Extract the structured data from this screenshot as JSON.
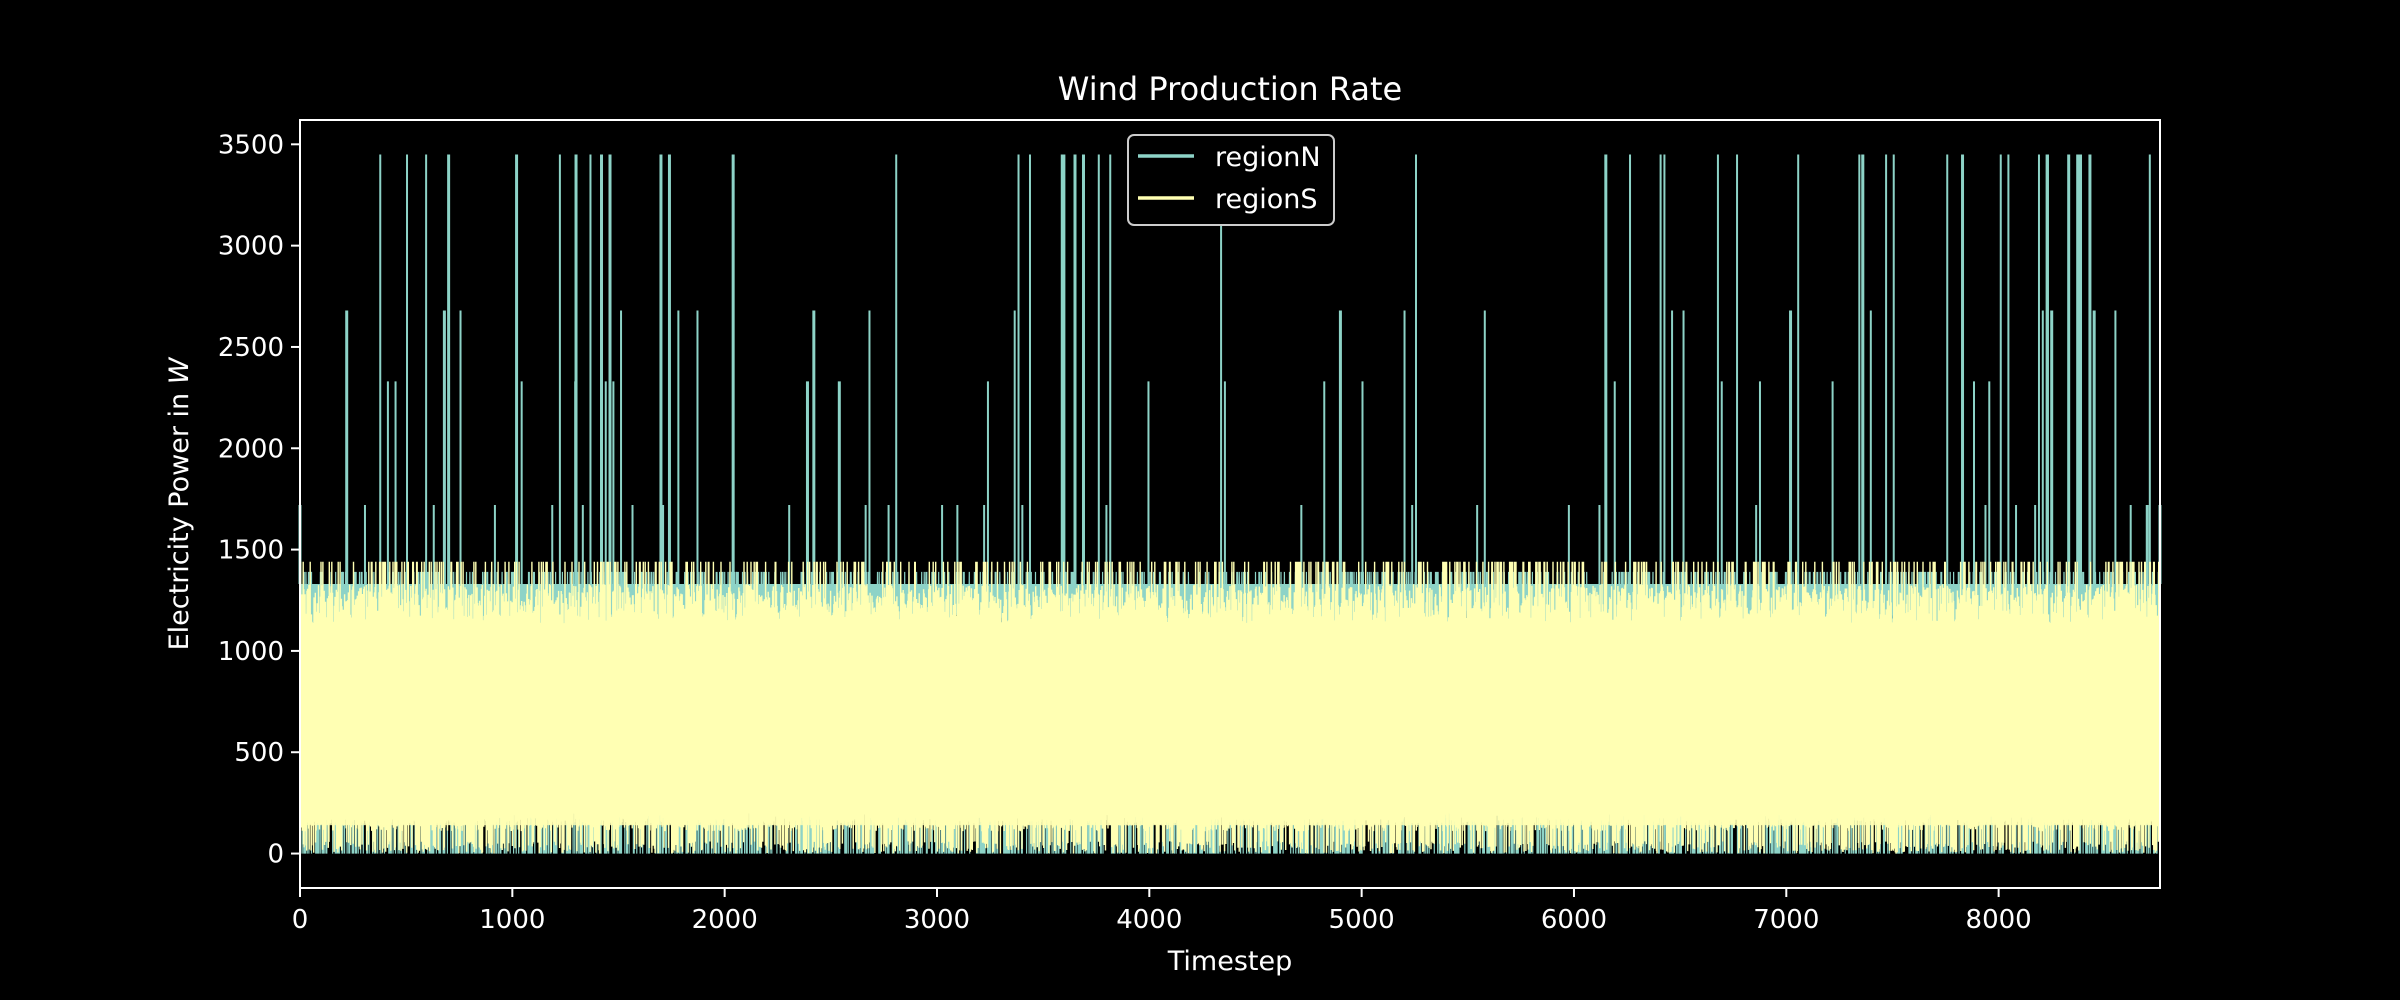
{
  "chart_data": {
    "type": "line",
    "title": "Wind Production Rate",
    "xlabel": "Timestep",
    "ylabel_prefix": "Electricity Power in ",
    "ylabel_unit": "W",
    "xlim": [
      0,
      8760
    ],
    "ylim": [
      -170,
      3620
    ],
    "x_ticks": [
      0,
      1000,
      2000,
      3000,
      4000,
      5000,
      6000,
      7000,
      8000
    ],
    "y_ticks": [
      0,
      500,
      1000,
      1500,
      2000,
      2500,
      3000,
      3500
    ],
    "grid": false,
    "legend_position": "top-center",
    "series": [
      {
        "name": "regionN",
        "color": "#8dd3c7",
        "description_points": {
          "x": [
            0,
            50,
            200,
            220,
            680,
            700,
            1000,
            1020,
            1280,
            1300,
            1420,
            1460,
            1700,
            1740,
            2040,
            2060,
            2390,
            2420,
            2540,
            2560,
            3590,
            3600,
            3650,
            3690,
            4900,
            4920,
            6150,
            6170,
            7020,
            7040,
            7360,
            7380,
            7830,
            7850,
            8230,
            8250,
            8330,
            8380,
            8430,
            8450,
            8700,
            8760
          ],
          "y": [
            1720,
            1390,
            1390,
            2680,
            2680,
            3450,
            1390,
            3450,
            1330,
            3450,
            3450,
            3450,
            3450,
            3450,
            3450,
            1390,
            2330,
            2680,
            2330,
            1330,
            3450,
            1390,
            3450,
            3450,
            2680,
            1330,
            3450,
            1330,
            2680,
            1330,
            3450,
            1330,
            3450,
            1330,
            3450,
            2680,
            3450,
            3450,
            3450,
            2680,
            1720,
            1720
          ]
        },
        "envelope": {
          "baseline_high": 1330,
          "baseline_low": 0,
          "peak_levels": [
            1390,
            1720,
            2330,
            2680,
            3450
          ]
        }
      },
      {
        "name": "regionS",
        "color": "#ffffb3",
        "envelope": {
          "typical_high": 1330,
          "max": 1440,
          "typical_low": 0,
          "floor_levels": [
            0,
            110,
            140
          ]
        }
      }
    ]
  }
}
